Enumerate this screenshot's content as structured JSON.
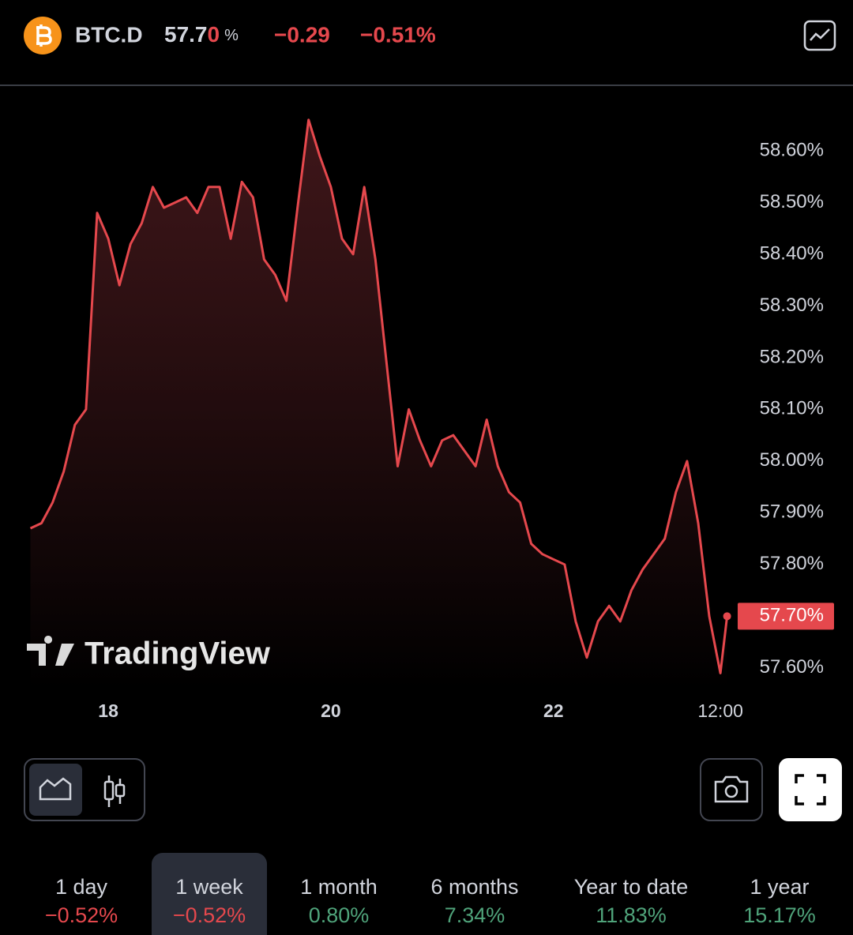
{
  "header": {
    "symbol": "BTC.D",
    "price_main": "57.7",
    "price_flash": "0",
    "price_unit": "%",
    "change": "−0.29",
    "change_percent": "−0.51%"
  },
  "chart_data": {
    "type": "line",
    "watermark": "TradingView",
    "x": [
      17.3,
      17.4,
      17.5,
      17.6,
      17.7,
      17.8,
      17.9,
      18.0,
      18.1,
      18.2,
      18.3,
      18.4,
      18.5,
      18.6,
      18.7,
      18.8,
      18.9,
      19.0,
      19.1,
      19.2,
      19.3,
      19.4,
      19.5,
      19.6,
      19.7,
      19.8,
      19.9,
      20.0,
      20.1,
      20.2,
      20.3,
      20.4,
      20.5,
      20.6,
      20.7,
      20.8,
      20.9,
      21.0,
      21.1,
      21.2,
      21.3,
      21.4,
      21.5,
      21.6,
      21.7,
      21.8,
      21.9,
      22.0,
      22.1,
      22.2,
      22.3,
      22.4,
      22.5,
      22.6,
      22.7,
      22.8,
      22.9,
      23.0,
      23.1,
      23.2,
      23.3,
      23.4,
      23.5,
      23.56
    ],
    "series": [
      {
        "name": "BTC.D",
        "color": "#e5484d",
        "values": [
          57.87,
          57.88,
          57.92,
          57.98,
          58.07,
          58.1,
          58.48,
          58.43,
          58.34,
          58.42,
          58.46,
          58.53,
          58.49,
          58.5,
          58.51,
          58.48,
          58.53,
          58.53,
          58.43,
          58.54,
          58.51,
          58.39,
          58.36,
          58.31,
          58.49,
          58.66,
          58.59,
          58.53,
          58.43,
          58.4,
          58.53,
          58.39,
          58.19,
          57.99,
          58.1,
          58.04,
          57.99,
          58.04,
          58.05,
          58.02,
          57.99,
          58.08,
          57.99,
          57.94,
          57.92,
          57.84,
          57.82,
          57.81,
          57.8,
          57.69,
          57.62,
          57.69,
          57.72,
          57.69,
          57.75,
          57.79,
          57.82,
          57.85,
          57.94,
          58.0,
          57.88,
          57.7,
          57.59,
          57.7
        ]
      }
    ],
    "current_value": {
      "value": 57.7,
      "label": "57.70%"
    },
    "xlim": [
      17.24,
      23.57
    ],
    "xticks": [
      {
        "value": 18,
        "label": "18"
      },
      {
        "value": 20,
        "label": "20"
      },
      {
        "value": 22,
        "label": "22"
      },
      {
        "value": 23.5,
        "label": "12:00"
      }
    ],
    "ylim": [
      57.56,
      58.7
    ],
    "yticks": [
      {
        "value": 57.6,
        "label": "57.60%"
      },
      {
        "value": 57.7,
        "label": "57.70%"
      },
      {
        "value": 57.8,
        "label": "57.80%"
      },
      {
        "value": 57.9,
        "label": "57.90%"
      },
      {
        "value": 58.0,
        "label": "58.00%"
      },
      {
        "value": 58.1,
        "label": "58.10%"
      },
      {
        "value": 58.2,
        "label": "58.20%"
      },
      {
        "value": 58.3,
        "label": "58.30%"
      },
      {
        "value": 58.4,
        "label": "58.40%"
      },
      {
        "value": 58.5,
        "label": "58.50%"
      },
      {
        "value": 58.6,
        "label": "58.60%"
      }
    ]
  },
  "periods": [
    {
      "label": "1 day",
      "change": "−0.52%",
      "color": "#e5484d"
    },
    {
      "label": "1 week",
      "change": "−0.52%",
      "color": "#e5484d",
      "active": true
    },
    {
      "label": "1 month",
      "change": "0.80%",
      "color": "#4fa37a"
    },
    {
      "label": "6 months",
      "change": "7.34%",
      "color": "#4fa37a"
    },
    {
      "label": "Year to date",
      "change": "11.83%",
      "color": "#4fa37a"
    },
    {
      "label": "1 year",
      "change": "15.17%",
      "color": "#4fa37a"
    }
  ]
}
